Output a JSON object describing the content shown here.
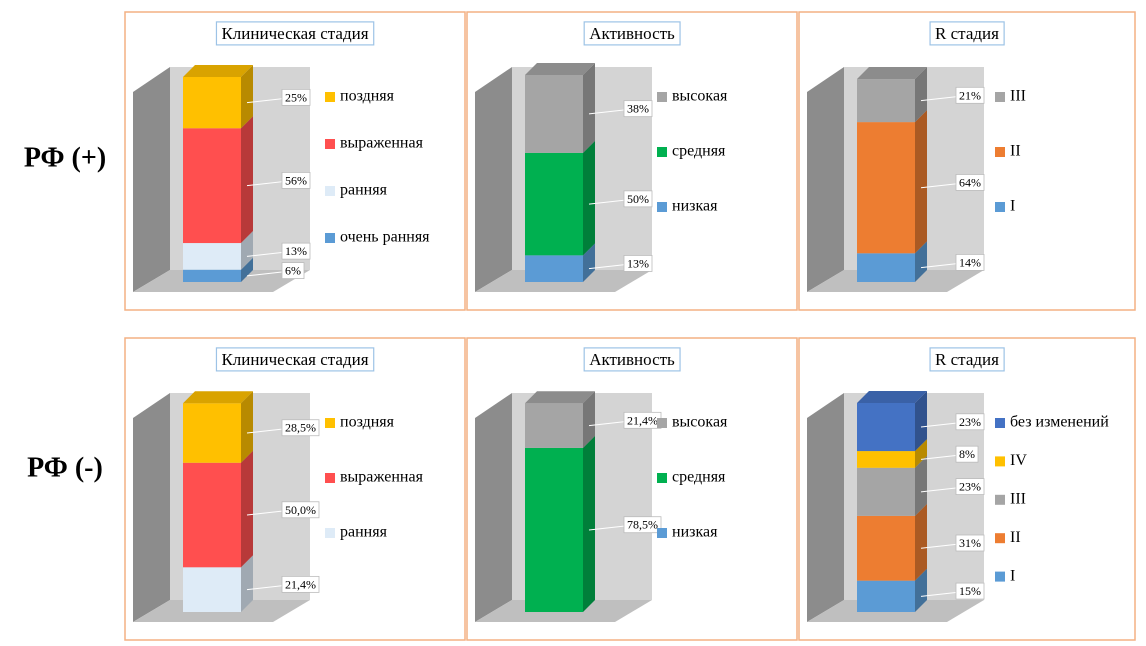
{
  "row_labels": [
    "РФ (+)",
    "РФ (-)"
  ],
  "chart_data": [
    {
      "type": "stacked3d",
      "title": "Клиническая стадия",
      "series": [
        {
          "name": "очень ранняя",
          "color": "#5b9bd5",
          "values": [
            6
          ],
          "value_labels": [
            "6%"
          ]
        },
        {
          "name": "ранняя",
          "color": "#deebf7",
          "values": [
            13
          ],
          "value_labels": [
            "13%"
          ]
        },
        {
          "name": "выраженная",
          "color": "#ff4f4f",
          "values": [
            56
          ],
          "value_labels": [
            "56%"
          ]
        },
        {
          "name": "поздняя",
          "color": "#ffc000",
          "values": [
            25
          ],
          "value_labels": [
            "25%"
          ]
        }
      ]
    },
    {
      "type": "stacked3d",
      "title": "Активность",
      "series": [
        {
          "name": "низкая",
          "color": "#5b9bd5",
          "values": [
            13
          ],
          "value_labels": [
            "13%"
          ]
        },
        {
          "name": "средняя",
          "color": "#00b050",
          "values": [
            50
          ],
          "value_labels": [
            "50%"
          ]
        },
        {
          "name": "высокая",
          "color": "#a5a5a5",
          "values": [
            38
          ],
          "value_labels": [
            "38%"
          ]
        }
      ]
    },
    {
      "type": "stacked3d",
      "title": "R стадия",
      "series": [
        {
          "name": "I",
          "color": "#5b9bd5",
          "values": [
            14
          ],
          "value_labels": [
            "14%"
          ]
        },
        {
          "name": "II",
          "color": "#ed7d31",
          "values": [
            64
          ],
          "value_labels": [
            "64%"
          ]
        },
        {
          "name": "III",
          "color": "#a5a5a5",
          "values": [
            21
          ],
          "value_labels": [
            "21%"
          ]
        }
      ]
    },
    {
      "type": "stacked3d",
      "title": "Клиническая стадия",
      "series": [
        {
          "name": "ранняя",
          "color": "#deebf7",
          "values": [
            21.4
          ],
          "value_labels": [
            "21,4%"
          ]
        },
        {
          "name": "выраженная",
          "color": "#ff4f4f",
          "values": [
            50.0
          ],
          "value_labels": [
            "50,0%"
          ]
        },
        {
          "name": "поздняя",
          "color": "#ffc000",
          "values": [
            28.5
          ],
          "value_labels": [
            "28,5%"
          ]
        }
      ]
    },
    {
      "type": "stacked3d",
      "title": "Активность",
      "series": [
        {
          "name": "низкая",
          "color": "#5b9bd5",
          "values": [
            null
          ],
          "value_labels": [
            null
          ]
        },
        {
          "name": "средняя",
          "color": "#00b050",
          "values": [
            78.5
          ],
          "value_labels": [
            "78,5%"
          ]
        },
        {
          "name": "высокая",
          "color": "#a5a5a5",
          "values": [
            21.4
          ],
          "value_labels": [
            "21,4%"
          ]
        }
      ]
    },
    {
      "type": "stacked3d",
      "title": "R стадия",
      "series": [
        {
          "name": "I",
          "color": "#5b9bd5",
          "values": [
            15
          ],
          "value_labels": [
            "15%"
          ]
        },
        {
          "name": "II",
          "color": "#ed7d31",
          "values": [
            31
          ],
          "value_labels": [
            "31%"
          ]
        },
        {
          "name": "III",
          "color": "#a5a5a5",
          "values": [
            23
          ],
          "value_labels": [
            "23%"
          ]
        },
        {
          "name": "IV",
          "color": "#ffc000",
          "values": [
            8
          ],
          "value_labels": [
            "8%"
          ]
        },
        {
          "name": "без изменений",
          "color": "#4472c4",
          "values": [
            23
          ],
          "value_labels": [
            "23%"
          ]
        }
      ]
    }
  ]
}
